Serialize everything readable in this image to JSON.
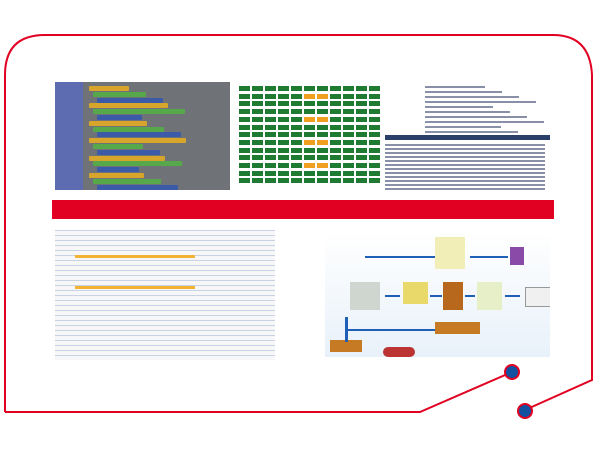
{
  "colors": {
    "frame": "#e20022",
    "dot": "#1450a0",
    "banner": "#e20022",
    "grid_cell": "#1f7a32",
    "grid_highlight": "#f0a020",
    "flow_arrow": "#1f5fb8"
  },
  "images": [
    {
      "name": "visual-block-programming-screenshot"
    },
    {
      "name": "status-grid-screenshot"
    },
    {
      "name": "code-editor-screenshot"
    },
    {
      "name": "data-table-screenshot"
    },
    {
      "name": "warehouse-flowchart"
    }
  ]
}
